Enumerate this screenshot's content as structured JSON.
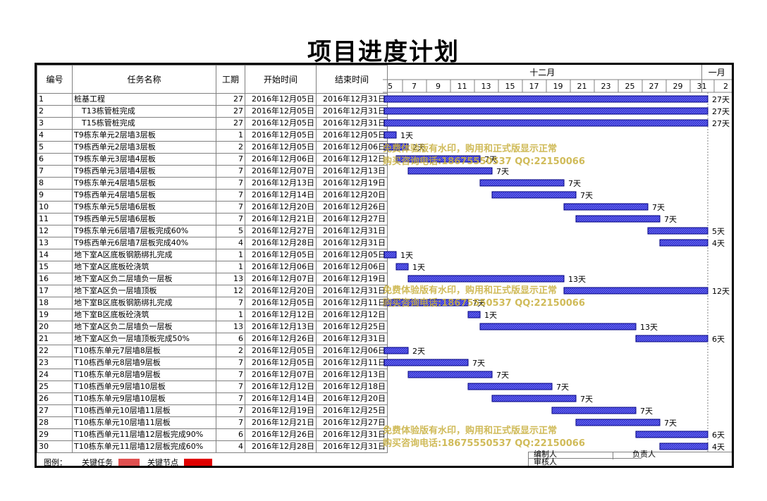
{
  "title": "项目进度计划",
  "headers": {
    "id": "编号",
    "name": "任务名称",
    "duration": "工期",
    "start": "开始时间",
    "end": "结束时间"
  },
  "timeline": {
    "month1": "十二月",
    "month2": "一月",
    "day_labels": [
      "5",
      "7",
      "9",
      "11",
      "13",
      "15",
      "17",
      "19",
      "21",
      "23",
      "25",
      "27",
      "29",
      "31",
      "2"
    ],
    "start_day": 5,
    "end_day": 32
  },
  "tasks": [
    {
      "id": "1",
      "name": "桩基工程",
      "duration": "27",
      "start": "2016年12月05日",
      "end": "2016年12月31日",
      "bar_start": 5,
      "bar_days": 27,
      "label": "27天"
    },
    {
      "id": "2",
      "name": "　T13栋管桩完成",
      "duration": "27",
      "start": "2016年12月05日",
      "end": "2016年12月31日",
      "bar_start": 5,
      "bar_days": 27,
      "label": "27天"
    },
    {
      "id": "3",
      "name": "　T15栋管桩完成",
      "duration": "27",
      "start": "2016年12月05日",
      "end": "2016年12月31日",
      "bar_start": 5,
      "bar_days": 27,
      "label": "27天"
    },
    {
      "id": "4",
      "name": "T9栋东单元2层墙3层板",
      "duration": "1",
      "start": "2016年12月05日",
      "end": "2016年12月05日",
      "bar_start": 5,
      "bar_days": 1,
      "label": "1天"
    },
    {
      "id": "5",
      "name": "T9栋西单元2层墙3层板",
      "duration": "2",
      "start": "2016年12月05日",
      "end": "2016年12月06日",
      "bar_start": 5,
      "bar_days": 2,
      "label": "2天"
    },
    {
      "id": "6",
      "name": "T9栋东单元3层墙4层板",
      "duration": "7",
      "start": "2016年12月06日",
      "end": "2016年12月12日",
      "bar_start": 6,
      "bar_days": 7,
      "label": "7天"
    },
    {
      "id": "7",
      "name": "T9栋西单元3层墙4层板",
      "duration": "7",
      "start": "2016年12月07日",
      "end": "2016年12月13日",
      "bar_start": 7,
      "bar_days": 7,
      "label": "7天"
    },
    {
      "id": "8",
      "name": "T9栋东单元4层墙5层板",
      "duration": "7",
      "start": "2016年12月13日",
      "end": "2016年12月19日",
      "bar_start": 13,
      "bar_days": 7,
      "label": "7天"
    },
    {
      "id": "9",
      "name": "T9栋西单元4层墙5层板",
      "duration": "7",
      "start": "2016年12月14日",
      "end": "2016年12月20日",
      "bar_start": 14,
      "bar_days": 7,
      "label": "7天"
    },
    {
      "id": "10",
      "name": "T9栋东单元5层墙6层板",
      "duration": "7",
      "start": "2016年12月20日",
      "end": "2016年12月26日",
      "bar_start": 20,
      "bar_days": 7,
      "label": "7天"
    },
    {
      "id": "11",
      "name": "T9栋西单元5层墙6层板",
      "duration": "7",
      "start": "2016年12月21日",
      "end": "2016年12月27日",
      "bar_start": 21,
      "bar_days": 7,
      "label": "7天"
    },
    {
      "id": "12",
      "name": "T9栋东单元6层墙7层板完成60%",
      "duration": "5",
      "start": "2016年12月27日",
      "end": "2016年12月31日",
      "bar_start": 27,
      "bar_days": 5,
      "label": "5天"
    },
    {
      "id": "13",
      "name": "T9栋西单元6层墙7层板完成40%",
      "duration": "4",
      "start": "2016年12月28日",
      "end": "2016年12月31日",
      "bar_start": 28,
      "bar_days": 4,
      "label": "4天"
    },
    {
      "id": "14",
      "name": "地下室A区底板钢筋绑扎完成",
      "duration": "1",
      "start": "2016年12月05日",
      "end": "2016年12月05日",
      "bar_start": 5,
      "bar_days": 1,
      "label": "1天"
    },
    {
      "id": "15",
      "name": "地下室A区底板砼浇筑",
      "duration": "1",
      "start": "2016年12月06日",
      "end": "2016年12月06日",
      "bar_start": 6,
      "bar_days": 1,
      "label": "1天"
    },
    {
      "id": "16",
      "name": "地下室A区负二层墙负一层板",
      "duration": "13",
      "start": "2016年12月07日",
      "end": "2016年12月19日",
      "bar_start": 7,
      "bar_days": 13,
      "label": "13天"
    },
    {
      "id": "17",
      "name": "地下室A区负一层墙顶板",
      "duration": "12",
      "start": "2016年12月20日",
      "end": "2016年12月31日",
      "bar_start": 20,
      "bar_days": 12,
      "label": "12天"
    },
    {
      "id": "18",
      "name": "地下室B区底板钢筋绑扎完成",
      "duration": "7",
      "start": "2016年12月05日",
      "end": "2016年12月11日",
      "bar_start": 5,
      "bar_days": 7,
      "label": "7天"
    },
    {
      "id": "19",
      "name": "地下室B区底板砼浇筑",
      "duration": "1",
      "start": "2016年12月12日",
      "end": "2016年12月12日",
      "bar_start": 12,
      "bar_days": 1,
      "label": "1天"
    },
    {
      "id": "20",
      "name": "地下室A区负二层墙负一层板",
      "duration": "13",
      "start": "2016年12月13日",
      "end": "2016年12月25日",
      "bar_start": 13,
      "bar_days": 13,
      "label": "13天"
    },
    {
      "id": "21",
      "name": "地下室A区负一层墙顶板完成50%",
      "duration": "6",
      "start": "2016年12月26日",
      "end": "2016年12月31日",
      "bar_start": 26,
      "bar_days": 6,
      "label": "6天"
    },
    {
      "id": "22",
      "name": "T10栋东单元7层墙8层板",
      "duration": "2",
      "start": "2016年12月05日",
      "end": "2016年12月06日",
      "bar_start": 5,
      "bar_days": 2,
      "label": "2天"
    },
    {
      "id": "23",
      "name": "T10栋西单元8层墙9层板",
      "duration": "7",
      "start": "2016年12月05日",
      "end": "2016年12月11日",
      "bar_start": 5,
      "bar_days": 7,
      "label": "7天"
    },
    {
      "id": "24",
      "name": "T10栋东单元8层墙9层板",
      "duration": "7",
      "start": "2016年12月07日",
      "end": "2016年12月13日",
      "bar_start": 7,
      "bar_days": 7,
      "label": "7天"
    },
    {
      "id": "25",
      "name": "T10栋西单元9层墙10层板",
      "duration": "7",
      "start": "2016年12月12日",
      "end": "2016年12月18日",
      "bar_start": 12,
      "bar_days": 7,
      "label": "7天"
    },
    {
      "id": "26",
      "name": "T10栋东单元9层墙10层板",
      "duration": "7",
      "start": "2016年12月14日",
      "end": "2016年12月20日",
      "bar_start": 14,
      "bar_days": 7,
      "label": "7天"
    },
    {
      "id": "27",
      "name": "T10栋西单元10层墙11层板",
      "duration": "7",
      "start": "2016年12月19日",
      "end": "2016年12月25日",
      "bar_start": 19,
      "bar_days": 7,
      "label": "7天"
    },
    {
      "id": "28",
      "name": "T10栋东单元10层墙11层板",
      "duration": "7",
      "start": "2016年12月21日",
      "end": "2016年12月27日",
      "bar_start": 21,
      "bar_days": 7,
      "label": "7天"
    },
    {
      "id": "29",
      "name": "T10栋西单元11层墙12层板完成90%",
      "duration": "6",
      "start": "2016年12月26日",
      "end": "2016年12月31日",
      "bar_start": 26,
      "bar_days": 6,
      "label": "6天"
    },
    {
      "id": "30",
      "name": "T10栋东单元11层墙12层板完成60%",
      "duration": "4",
      "start": "2016年12月28日",
      "end": "2016年12月31日",
      "bar_start": 28,
      "bar_days": 4,
      "label": "4天"
    }
  ],
  "legend": {
    "label": "图例：",
    "key_task": "关键任务",
    "key_milestone": "关键节点"
  },
  "signatures": {
    "prepared": "编制人",
    "reviewed": "审核人",
    "responsible": "负责人"
  },
  "watermark": {
    "line1": "免费体验版有水印，购用和正式版显示正常",
    "line2": "购买咨询电话:18675550537 QQ:22150066"
  },
  "colors": {
    "bar_fill": "#2f2fd0",
    "bar_border": "#000080",
    "grid": "#808080",
    "legend_task": "#e05050",
    "legend_milestone": "#e00000",
    "watermark": "#c8af3c"
  }
}
